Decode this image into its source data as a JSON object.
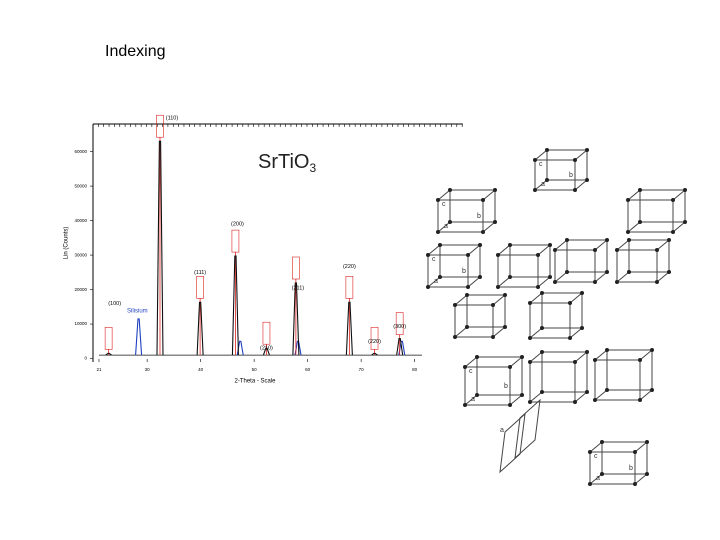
{
  "slide_title": "Indexing",
  "chart_data": {
    "type": "xrd",
    "title": "SrTiO",
    "title_subscript": "3",
    "x_label": "2-Theta - Scale",
    "y_label": "Lin (Counts)",
    "xlim": [
      19,
      89
    ],
    "ylim": [
      -1000,
      68000
    ],
    "xticks": [
      21,
      30,
      40,
      50,
      60,
      70,
      80
    ],
    "yticks": [
      0,
      10000,
      20000,
      30000,
      40000,
      50000,
      60000
    ],
    "series": [
      {
        "name": "Silisium",
        "color": "#1f3fbf",
        "x": [
          28.4,
          47.4,
          58.2,
          77.6
        ],
        "values": [
          11500,
          5000,
          5000,
          5000
        ]
      },
      {
        "color": "#111111",
        "x": [
          22.8,
          32.4,
          39.9,
          46.5,
          52.3,
          57.8,
          67.8,
          72.5,
          77.2
        ],
        "values": [
          1500,
          63000,
          16300,
          29700,
          3000,
          21900,
          16300,
          1500,
          5800
        ],
        "peak_labels": [
          "(100)",
          "(110)",
          "(111)",
          "(200)",
          "(210)",
          "(211)",
          "(220)",
          "(220)",
          "(300)"
        ]
      }
    ]
  },
  "lattice_axes": [
    "a",
    "b",
    "c"
  ]
}
